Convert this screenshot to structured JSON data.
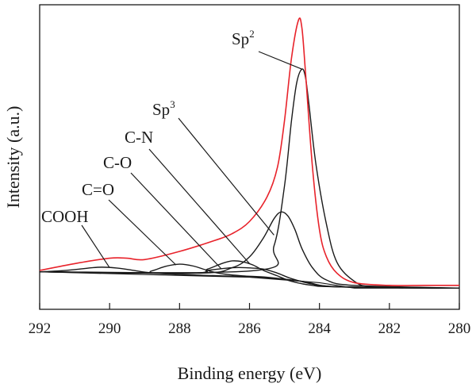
{
  "chart_data": {
    "type": "line",
    "xlabel": "Binding energy (eV)",
    "ylabel": "Intensity (a.u.)",
    "xlim": [
      292,
      280
    ],
    "x_reversed": true,
    "x_ticks": [
      "292",
      "290",
      "288",
      "286",
      "284",
      "282",
      "280"
    ],
    "y_ticks": [],
    "ylim": [
      0,
      100
    ],
    "grid": false,
    "legend": "none",
    "colors": {
      "envelope": "#e8232b",
      "components": "#1a1a1a",
      "baseline": "#1a1a1a"
    },
    "baseline": [
      [
        292,
        6.5
      ],
      [
        286,
        4.5
      ],
      [
        284,
        2.5
      ],
      [
        283,
        0.5
      ],
      [
        280,
        0.5
      ]
    ],
    "series": [
      {
        "x": [
          292,
          291,
          290,
          289.5,
          289,
          288,
          287,
          286.5,
          286,
          285.5,
          285.2,
          285,
          284.8,
          284.6,
          284.5,
          284.4,
          284.2,
          284,
          283.8,
          283.5,
          283,
          282,
          281,
          280
        ],
        "y": [
          7.0,
          9.5,
          11.5,
          11.5,
          11.0,
          14.0,
          18.0,
          20.5,
          25.0,
          34.0,
          45.0,
          62.0,
          85.0,
          99.0,
          96.0,
          80.0,
          45.0,
          22.0,
          12.0,
          6.0,
          2.5,
          1.5,
          1.5,
          1.5
        ]
      },
      {
        "x": [
          292,
          285.8,
          285.3,
          285.0,
          284.8,
          284.65,
          284.5,
          284.4,
          284.3,
          284.1,
          283.8,
          283.5,
          283.0,
          282.5,
          281,
          280
        ],
        "y": [
          6.5,
          7.0,
          16.0,
          38.0,
          62.0,
          76.0,
          81.0,
          78.0,
          68.0,
          46.0,
          24.0,
          10.0,
          3.0,
          1.0,
          0.5,
          0.5
        ]
      },
      {
        "x": [
          292,
          287.5,
          286.5,
          286.0,
          285.6,
          285.3,
          285.1,
          284.9,
          284.7,
          284.5,
          284.2,
          283.8,
          283.0,
          280
        ],
        "y": [
          6.5,
          6.0,
          8.0,
          12.0,
          19.0,
          26.0,
          28.5,
          27.0,
          22.0,
          15.0,
          8.0,
          3.5,
          1.5,
          0.5
        ]
      },
      {
        "x": [
          292,
          287.7,
          287.2,
          286.8,
          286.5,
          286.2,
          285.9,
          285.6,
          285.2,
          284.8,
          284.2,
          283.5,
          280
        ],
        "y": [
          6.5,
          6.0,
          7.5,
          9.5,
          10.5,
          10.2,
          9.0,
          7.0,
          5.0,
          3.0,
          1.5,
          1.0,
          0.5
        ]
      },
      {
        "x": [
          292,
          287.8,
          287.2,
          286.9,
          286.5,
          286.1,
          285.6,
          285.2,
          284.8,
          284.2,
          283.5,
          280
        ],
        "y": [
          6.5,
          6.0,
          7.0,
          7.5,
          8.0,
          8.0,
          7.5,
          6.0,
          4.0,
          2.0,
          1.0,
          0.5
        ]
      },
      {
        "x": [
          292,
          289.2,
          288.8,
          288.4,
          288.0,
          287.6,
          287.2,
          286.8,
          286.2,
          285.5,
          284.5,
          283.5,
          280
        ],
        "y": [
          6.5,
          6.0,
          6.8,
          8.5,
          9.3,
          8.6,
          7.0,
          5.8,
          5.0,
          4.5,
          3.0,
          1.0,
          0.5
        ]
      },
      {
        "x": [
          292,
          291.5,
          291.0,
          290.5,
          290.2,
          289.8,
          289.4,
          289.0,
          288.5,
          287.5,
          286,
          284.5,
          283.5,
          280
        ],
        "y": [
          6.5,
          6.8,
          7.3,
          8.0,
          8.2,
          7.9,
          7.2,
          6.4,
          5.8,
          5.3,
          4.6,
          3.0,
          1.0,
          0.5
        ]
      }
    ],
    "annotations": [
      {
        "text": "Sp",
        "sup": "2",
        "x": 284.5,
        "y": 81.0
      },
      {
        "text": "Sp",
        "sup": "3",
        "x": 285.3,
        "y": 20.0
      },
      {
        "text": "C-N",
        "x": 286.0,
        "y": 9.5
      },
      {
        "text": "C-O",
        "x": 286.8,
        "y": 7.5
      },
      {
        "text": "C=O",
        "x": 288.1,
        "y": 9.0
      },
      {
        "text": "COOH",
        "x": 290.0,
        "y": 8.0
      }
    ]
  }
}
